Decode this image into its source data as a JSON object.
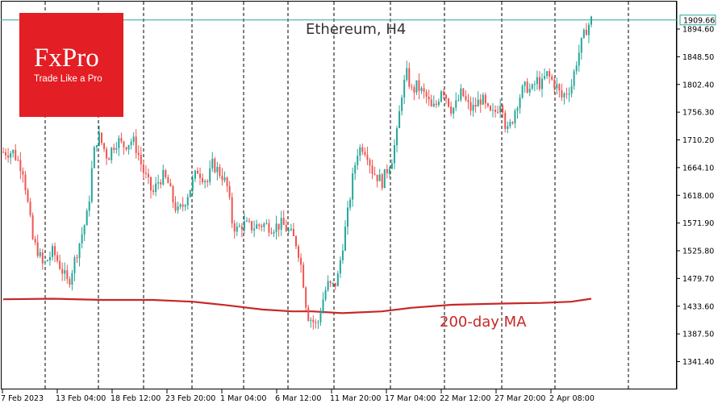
{
  "chart_data": {
    "type": "candlestick",
    "title": "Ethereum, H4",
    "ma_label": "200-day MA",
    "y_axis": {
      "ticks": [
        "1894.60",
        "1848.50",
        "1802.40",
        "1756.30",
        "1710.20",
        "1664.10",
        "1618.00",
        "1571.90",
        "1525.80",
        "1479.70",
        "1433.60",
        "1387.50",
        "1341.40"
      ],
      "range": [
        1300,
        1925
      ]
    },
    "x_axis": {
      "ticks": [
        "7 Feb 2023",
        "13 Feb 04:00",
        "18 Feb 12:00",
        "23 Feb 20:00",
        "1 Mar 04:00",
        "6 Mar 12:00",
        "11 Mar 20:00",
        "17 Mar 04:00",
        "22 Mar 12:00",
        "27 Mar 20:00",
        "2 Apr 08:00"
      ]
    },
    "last_price": "1909.66",
    "grid": "vertical dashed",
    "colors": {
      "up": "#26a69a",
      "down": "#ef5350",
      "ma": "#c62828",
      "last_price_line": "#26a69a",
      "logo_bg": "#e31e24"
    },
    "price_path": [
      [
        0,
        1690
      ],
      [
        2,
        1690
      ],
      [
        4,
        1660
      ],
      [
        5,
        1600
      ],
      [
        6,
        1540
      ],
      [
        7,
        1525
      ],
      [
        8,
        1500
      ],
      [
        10,
        1525
      ],
      [
        12,
        1490
      ],
      [
        13,
        1470
      ],
      [
        15,
        1530
      ],
      [
        16,
        1560
      ],
      [
        17,
        1590
      ],
      [
        18,
        1680
      ],
      [
        19,
        1720
      ],
      [
        20,
        1700
      ],
      [
        21,
        1680
      ],
      [
        22,
        1700
      ],
      [
        23,
        1710
      ],
      [
        24,
        1700
      ],
      [
        25,
        1705
      ],
      [
        26,
        1710
      ],
      [
        27,
        1690
      ],
      [
        28,
        1660
      ],
      [
        29,
        1640
      ],
      [
        30,
        1620
      ],
      [
        31,
        1640
      ],
      [
        32,
        1650
      ],
      [
        33,
        1640
      ],
      [
        34,
        1610
      ],
      [
        35,
        1590
      ],
      [
        36,
        1600
      ],
      [
        37,
        1620
      ],
      [
        38,
        1640
      ],
      [
        39,
        1660
      ],
      [
        40,
        1650
      ],
      [
        41,
        1640
      ],
      [
        42,
        1670
      ],
      [
        43,
        1660
      ],
      [
        44,
        1650
      ],
      [
        45,
        1630
      ],
      [
        46,
        1570
      ],
      [
        47,
        1560
      ],
      [
        48,
        1570
      ],
      [
        50,
        1565
      ],
      [
        52,
        1570
      ],
      [
        54,
        1565
      ],
      [
        56,
        1570
      ],
      [
        57,
        1560
      ],
      [
        58,
        1550
      ],
      [
        59,
        1535
      ],
      [
        60,
        1490
      ],
      [
        61,
        1420
      ],
      [
        62,
        1410
      ],
      [
        63,
        1400
      ],
      [
        64,
        1440
      ],
      [
        65,
        1470
      ],
      [
        66,
        1465
      ],
      [
        67,
        1475
      ],
      [
        68,
        1530
      ],
      [
        69,
        1580
      ],
      [
        70,
        1640
      ],
      [
        71,
        1690
      ],
      [
        72,
        1700
      ],
      [
        73,
        1690
      ],
      [
        74,
        1660
      ],
      [
        75,
        1650
      ],
      [
        76,
        1640
      ],
      [
        77,
        1660
      ],
      [
        78,
        1680
      ],
      [
        79,
        1720
      ],
      [
        80,
        1790
      ],
      [
        81,
        1820
      ],
      [
        82,
        1790
      ],
      [
        83,
        1800
      ],
      [
        84,
        1790
      ],
      [
        85,
        1780
      ],
      [
        86,
        1760
      ],
      [
        87,
        1770
      ],
      [
        88,
        1800
      ],
      [
        89,
        1780
      ],
      [
        90,
        1760
      ],
      [
        91,
        1770
      ],
      [
        92,
        1790
      ],
      [
        93,
        1770
      ],
      [
        94,
        1760
      ],
      [
        95,
        1770
      ],
      [
        96,
        1780
      ],
      [
        97,
        1760
      ],
      [
        98,
        1750
      ],
      [
        99,
        1760
      ],
      [
        100,
        1780
      ],
      [
        101,
        1720
      ],
      [
        102,
        1740
      ],
      [
        103,
        1770
      ],
      [
        104,
        1790
      ],
      [
        105,
        1800
      ],
      [
        106,
        1790
      ],
      [
        107,
        1810
      ],
      [
        108,
        1800
      ],
      [
        109,
        1820
      ],
      [
        110,
        1810
      ],
      [
        111,
        1800
      ],
      [
        112,
        1780
      ],
      [
        113,
        1790
      ],
      [
        114,
        1800
      ],
      [
        115,
        1840
      ],
      [
        116,
        1870
      ],
      [
        117,
        1895
      ],
      [
        118,
        1909.66
      ]
    ],
    "ma_path": [
      [
        0,
        1445
      ],
      [
        10,
        1446
      ],
      [
        20,
        1444
      ],
      [
        30,
        1444
      ],
      [
        38,
        1441
      ],
      [
        45,
        1435
      ],
      [
        52,
        1428
      ],
      [
        58,
        1425
      ],
      [
        62,
        1425
      ],
      [
        68,
        1422
      ],
      [
        76,
        1425
      ],
      [
        82,
        1431
      ],
      [
        90,
        1436
      ],
      [
        100,
        1438
      ],
      [
        108,
        1439
      ],
      [
        114,
        1441
      ],
      [
        118,
        1446
      ]
    ]
  },
  "logo": {
    "name": "FxPro",
    "tagline": "Trade Like a Pro"
  }
}
